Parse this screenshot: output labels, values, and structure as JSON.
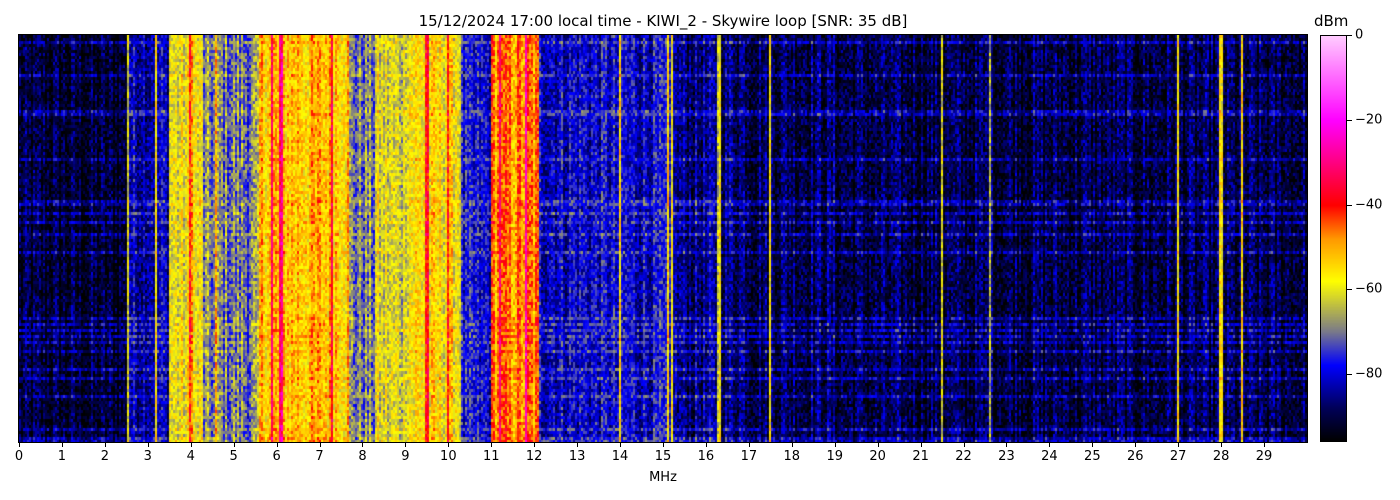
{
  "chart_data": {
    "type": "heatmap",
    "title": "15/12/2024 17:00 local time - KIWI_2 - Skywire loop [SNR: 35 dB]",
    "xlabel": "MHz",
    "xlim": [
      0,
      30
    ],
    "xticks": [
      0,
      1,
      2,
      3,
      4,
      5,
      6,
      7,
      8,
      9,
      10,
      11,
      12,
      13,
      14,
      15,
      16,
      17,
      18,
      19,
      20,
      21,
      22,
      23,
      24,
      25,
      26,
      27,
      28,
      29
    ],
    "colorbar": {
      "label": "dBm",
      "range": [
        -96,
        0
      ],
      "ticks": [
        0,
        -20,
        -40,
        -60,
        -80
      ],
      "colormap": [
        {
          "v": -96,
          "c": "#000000"
        },
        {
          "v": -88,
          "c": "#00005a"
        },
        {
          "v": -78,
          "c": "#0000ff"
        },
        {
          "v": -70,
          "c": "#7a7a8a"
        },
        {
          "v": -58,
          "c": "#ffff00"
        },
        {
          "v": -48,
          "c": "#ff9900"
        },
        {
          "v": -40,
          "c": "#ff0000"
        },
        {
          "v": -20,
          "c": "#ff00ff"
        },
        {
          "v": 0,
          "c": "#ffccff"
        }
      ]
    },
    "approx_level_by_band_dBm": [
      {
        "from": 0,
        "to": 2.5,
        "level": -92
      },
      {
        "from": 2.5,
        "to": 3.5,
        "level": -82
      },
      {
        "from": 3.5,
        "to": 4.3,
        "level": -60
      },
      {
        "from": 4.3,
        "to": 5.6,
        "level": -70
      },
      {
        "from": 5.6,
        "to": 7.7,
        "level": -52
      },
      {
        "from": 7.7,
        "to": 8.3,
        "level": -70
      },
      {
        "from": 8.3,
        "to": 9.0,
        "level": -62
      },
      {
        "from": 9.0,
        "to": 10.3,
        "level": -57
      },
      {
        "from": 10.3,
        "to": 11.0,
        "level": -80
      },
      {
        "from": 11.0,
        "to": 12.1,
        "level": -48
      },
      {
        "from": 12.1,
        "to": 15.3,
        "level": -80
      },
      {
        "from": 15.3,
        "to": 17.0,
        "level": -86
      },
      {
        "from": 17.0,
        "to": 19.0,
        "level": -88
      },
      {
        "from": 19.0,
        "to": 30.0,
        "level": -90
      }
    ],
    "strong_carriers_MHz": [
      2.55,
      3.2,
      4.0,
      4.6,
      5.9,
      6.1,
      7.3,
      9.5,
      10.0,
      11.2,
      11.8,
      14.0,
      15.1,
      15.2,
      16.3,
      17.5,
      21.5,
      22.6,
      27.0,
      28.0,
      28.5
    ]
  }
}
